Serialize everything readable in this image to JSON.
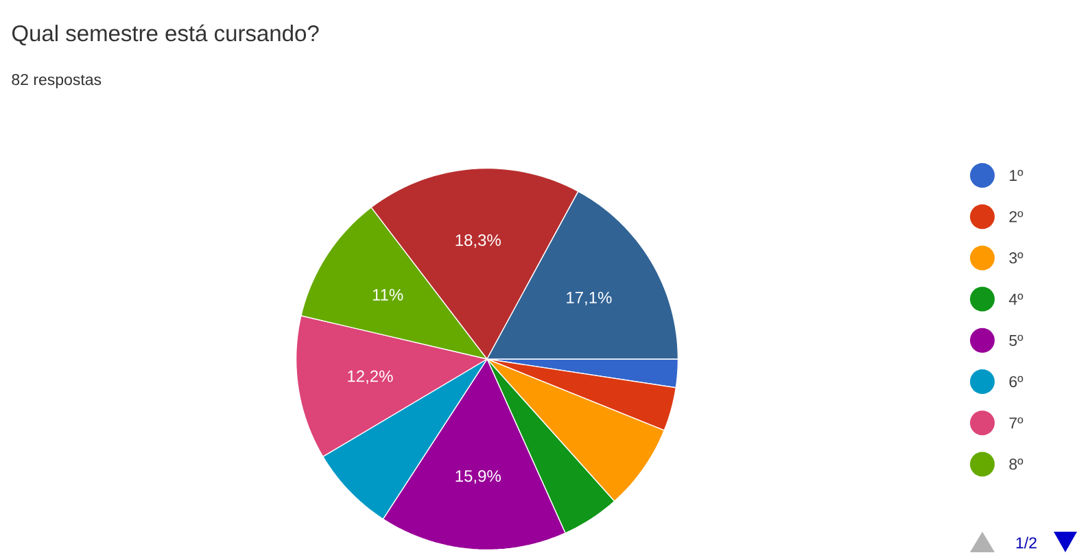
{
  "chart_data": {
    "type": "pie",
    "title": "Qual semestre está cursando?",
    "subtitle": "82 respostas",
    "categories": [
      "1º",
      "2º",
      "3º",
      "4º",
      "5º",
      "6º",
      "7º",
      "8º",
      null,
      null
    ],
    "values": [
      2.4,
      3.7,
      7.3,
      4.9,
      15.9,
      7.3,
      12.2,
      11,
      18.3,
      17.1
    ],
    "value_labels": [
      null,
      null,
      null,
      null,
      "15,9%",
      null,
      "12,2%",
      "11%",
      "18,3%",
      "17,1%"
    ],
    "colors": [
      "#3366cc",
      "#dc3912",
      "#ff9900",
      "#109618",
      "#990099",
      "#0099c6",
      "#dd4477",
      "#66aa00",
      "#b82e2e",
      "#316395"
    ],
    "legend": "right",
    "annotations": [
      "1/2"
    ]
  }
}
